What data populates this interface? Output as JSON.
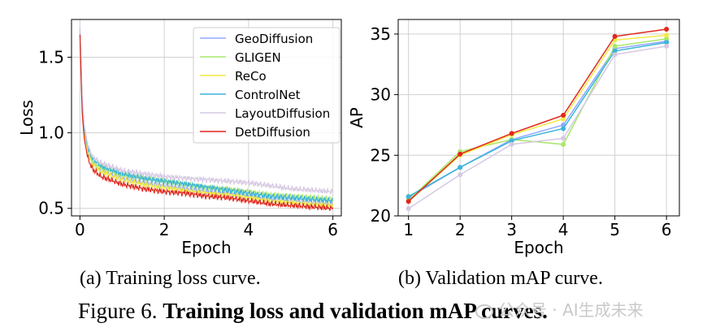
{
  "chart_data": [
    {
      "type": "line",
      "id": "loss",
      "xlabel": "Epoch",
      "ylabel": "Loss",
      "xlim": [
        -0.2,
        6.2
      ],
      "ylim": [
        0.45,
        1.75
      ],
      "xticks": [
        0,
        2,
        4,
        6
      ],
      "yticks": [
        0.5,
        1.0,
        1.5
      ],
      "ytick_labels": [
        "0.5",
        "1.0",
        "1.5"
      ],
      "grid": true,
      "legend_position": "top-right",
      "series": [
        {
          "name": "GeoDiffusion",
          "color": "#8fa8ff",
          "x": [
            0,
            0.05,
            0.1,
            0.2,
            0.3,
            0.5,
            0.8,
            1.0,
            1.5,
            2,
            2.5,
            3,
            3.5,
            4,
            4.5,
            5,
            5.5,
            6
          ],
          "y": [
            1.67,
            1.2,
            1.0,
            0.86,
            0.8,
            0.75,
            0.72,
            0.7,
            0.67,
            0.65,
            0.63,
            0.61,
            0.6,
            0.58,
            0.56,
            0.55,
            0.54,
            0.53
          ]
        },
        {
          "name": "GLIGEN",
          "color": "#a8e86a",
          "x": [
            0,
            0.05,
            0.1,
            0.2,
            0.3,
            0.5,
            0.8,
            1.0,
            1.5,
            2,
            2.5,
            3,
            3.5,
            4,
            4.5,
            5,
            5.5,
            6
          ],
          "y": [
            1.68,
            1.22,
            1.02,
            0.87,
            0.81,
            0.77,
            0.74,
            0.72,
            0.7,
            0.68,
            0.66,
            0.64,
            0.63,
            0.61,
            0.59,
            0.58,
            0.57,
            0.56
          ]
        },
        {
          "name": "ReCo",
          "color": "#f2ea44",
          "x": [
            0,
            0.05,
            0.1,
            0.2,
            0.3,
            0.5,
            0.8,
            1.0,
            1.5,
            2,
            2.5,
            3,
            3.5,
            4,
            4.5,
            5,
            5.5,
            6
          ],
          "y": [
            1.66,
            1.18,
            0.99,
            0.85,
            0.79,
            0.74,
            0.71,
            0.69,
            0.66,
            0.64,
            0.62,
            0.6,
            0.59,
            0.57,
            0.55,
            0.54,
            0.53,
            0.52
          ]
        },
        {
          "name": "ControlNet",
          "color": "#3cb4d8",
          "x": [
            0,
            0.05,
            0.1,
            0.2,
            0.3,
            0.5,
            0.8,
            1.0,
            1.5,
            2,
            2.5,
            3,
            3.5,
            4,
            4.5,
            5,
            5.5,
            6
          ],
          "y": [
            1.69,
            1.23,
            1.03,
            0.89,
            0.83,
            0.78,
            0.75,
            0.73,
            0.7,
            0.68,
            0.66,
            0.64,
            0.62,
            0.6,
            0.58,
            0.57,
            0.56,
            0.55
          ]
        },
        {
          "name": "LayoutDiffusion",
          "color": "#d6c8e2",
          "x": [
            0,
            0.05,
            0.1,
            0.2,
            0.3,
            0.5,
            0.8,
            1.0,
            1.5,
            2,
            2.5,
            3,
            3.5,
            4,
            4.5,
            5,
            5.5,
            6
          ],
          "y": [
            1.7,
            1.25,
            1.05,
            0.9,
            0.84,
            0.8,
            0.77,
            0.75,
            0.73,
            0.71,
            0.7,
            0.69,
            0.68,
            0.67,
            0.65,
            0.63,
            0.62,
            0.61
          ]
        },
        {
          "name": "DetDiffusion",
          "color": "#e0271d",
          "x": [
            0,
            0.05,
            0.1,
            0.2,
            0.3,
            0.5,
            0.8,
            1.0,
            1.5,
            2,
            2.5,
            3,
            3.5,
            4,
            4.5,
            5,
            5.5,
            6
          ],
          "y": [
            1.65,
            1.15,
            0.96,
            0.82,
            0.76,
            0.71,
            0.68,
            0.66,
            0.63,
            0.61,
            0.6,
            0.58,
            0.57,
            0.55,
            0.53,
            0.52,
            0.51,
            0.5
          ]
        }
      ]
    },
    {
      "type": "line",
      "id": "map",
      "xlabel": "Epoch",
      "ylabel": "AP",
      "xlim": [
        0.8,
        6.25
      ],
      "ylim": [
        20,
        36.2
      ],
      "xticks": [
        1,
        2,
        3,
        4,
        5,
        6
      ],
      "yticks": [
        20,
        25,
        30,
        35
      ],
      "grid": true,
      "markers": true,
      "x": [
        1,
        2,
        3,
        4,
        5,
        6
      ],
      "series": [
        {
          "name": "GeoDiffusion",
          "color": "#8fa8ff",
          "values": [
            21.5,
            24.0,
            26.3,
            27.5,
            33.8,
            34.4
          ]
        },
        {
          "name": "GLIGEN",
          "color": "#a8e86a",
          "values": [
            21.3,
            25.3,
            26.3,
            25.9,
            34.0,
            34.6
          ]
        },
        {
          "name": "ReCo",
          "color": "#f2ea44",
          "values": [
            21.2,
            25.0,
            26.7,
            28.0,
            34.5,
            34.9
          ]
        },
        {
          "name": "ControlNet",
          "color": "#3cb4d8",
          "values": [
            21.6,
            24.0,
            26.2,
            27.2,
            33.6,
            34.3
          ]
        },
        {
          "name": "LayoutDiffusion",
          "color": "#d6c8e2",
          "values": [
            20.6,
            23.4,
            25.9,
            26.4,
            33.3,
            34.0
          ]
        },
        {
          "name": "DetDiffusion",
          "color": "#e0271d",
          "values": [
            21.2,
            25.1,
            26.8,
            28.3,
            34.8,
            35.4
          ]
        }
      ]
    }
  ],
  "captions": {
    "sub_a": "(a) Training loss curve.",
    "sub_b": "(b) Validation mAP curve.",
    "figure_label": "Figure 6.",
    "figure_title": "Training loss and validation mAP curves."
  },
  "watermark": "公众号 · AI生成未来"
}
